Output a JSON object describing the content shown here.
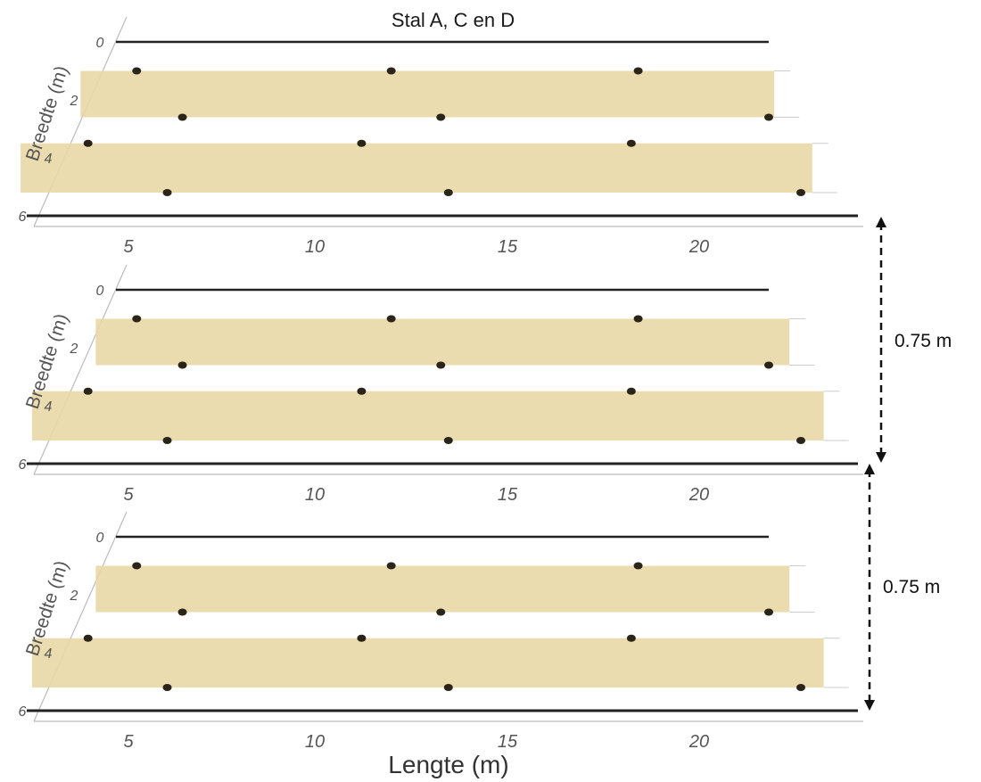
{
  "title": "Stal A, C en D",
  "x_axis_label": "Lengte (m)",
  "y_axis_label": "Breedte (m)",
  "x_ticks": [
    "5",
    "10",
    "15",
    "20"
  ],
  "y_ticks": [
    "0",
    "2",
    "4",
    "6"
  ],
  "layer_gap_labels": [
    "0.75 m",
    "0.75 m"
  ],
  "colors": {
    "strip": "#e9d8a6",
    "sensor": "#2b2418",
    "wall": "#222222"
  },
  "chart_data": {
    "type": "scatter",
    "title": "Stal A, C en D",
    "xlabel": "Lengte (m)",
    "ylabel": "Breedte (m)",
    "xlim": [
      2.5,
      24.5
    ],
    "ylim": [
      0,
      6
    ],
    "layers": [
      {
        "strips": [
          {
            "x_start": 4.5,
            "x_end": 22.0,
            "y_start": 1.0,
            "y_end": 2.6
          },
          {
            "x_start": 4.0,
            "x_end": 23.0,
            "y_start": 3.5,
            "y_end": 5.2
          }
        ],
        "points": [
          {
            "x": 5.1,
            "y": 1.0
          },
          {
            "x": 11.8,
            "y": 1.0
          },
          {
            "x": 18.3,
            "y": 1.0
          },
          {
            "x": 8.3,
            "y": 2.6
          },
          {
            "x": 15.1,
            "y": 2.6
          },
          {
            "x": 22.0,
            "y": 2.6
          },
          {
            "x": 4.5,
            "y": 3.5
          },
          {
            "x": 11.7,
            "y": 3.5
          },
          {
            "x": 18.8,
            "y": 3.5
          },
          {
            "x": 7.9,
            "y": 5.2
          },
          {
            "x": 15.3,
            "y": 5.2
          },
          {
            "x": 22.8,
            "y": 5.2
          }
        ]
      },
      {
        "strips": [
          {
            "x_start": 4.9,
            "x_end": 22.4,
            "y_start": 1.0,
            "y_end": 2.6
          },
          {
            "x_start": 4.3,
            "x_end": 23.3,
            "y_start": 3.5,
            "y_end": 5.2
          }
        ],
        "points": [
          {
            "x": 5.1,
            "y": 1.0
          },
          {
            "x": 11.8,
            "y": 1.0
          },
          {
            "x": 18.3,
            "y": 1.0
          },
          {
            "x": 8.3,
            "y": 2.6
          },
          {
            "x": 15.1,
            "y": 2.6
          },
          {
            "x": 22.0,
            "y": 2.6
          },
          {
            "x": 4.5,
            "y": 3.5
          },
          {
            "x": 11.7,
            "y": 3.5
          },
          {
            "x": 18.8,
            "y": 3.5
          },
          {
            "x": 7.9,
            "y": 5.2
          },
          {
            "x": 15.3,
            "y": 5.2
          },
          {
            "x": 22.8,
            "y": 5.2
          }
        ]
      },
      {
        "strips": [
          {
            "x_start": 4.9,
            "x_end": 22.4,
            "y_start": 1.0,
            "y_end": 2.6
          },
          {
            "x_start": 4.3,
            "x_end": 23.3,
            "y_start": 3.5,
            "y_end": 5.2
          }
        ],
        "points": [
          {
            "x": 5.1,
            "y": 1.0
          },
          {
            "x": 11.8,
            "y": 1.0
          },
          {
            "x": 18.3,
            "y": 1.0
          },
          {
            "x": 8.3,
            "y": 2.6
          },
          {
            "x": 15.1,
            "y": 2.6
          },
          {
            "x": 22.0,
            "y": 2.6
          },
          {
            "x": 4.5,
            "y": 3.5
          },
          {
            "x": 11.7,
            "y": 3.5
          },
          {
            "x": 18.8,
            "y": 3.5
          },
          {
            "x": 7.9,
            "y": 5.2
          },
          {
            "x": 15.3,
            "y": 5.2
          },
          {
            "x": 22.8,
            "y": 5.2
          }
        ]
      }
    ]
  }
}
